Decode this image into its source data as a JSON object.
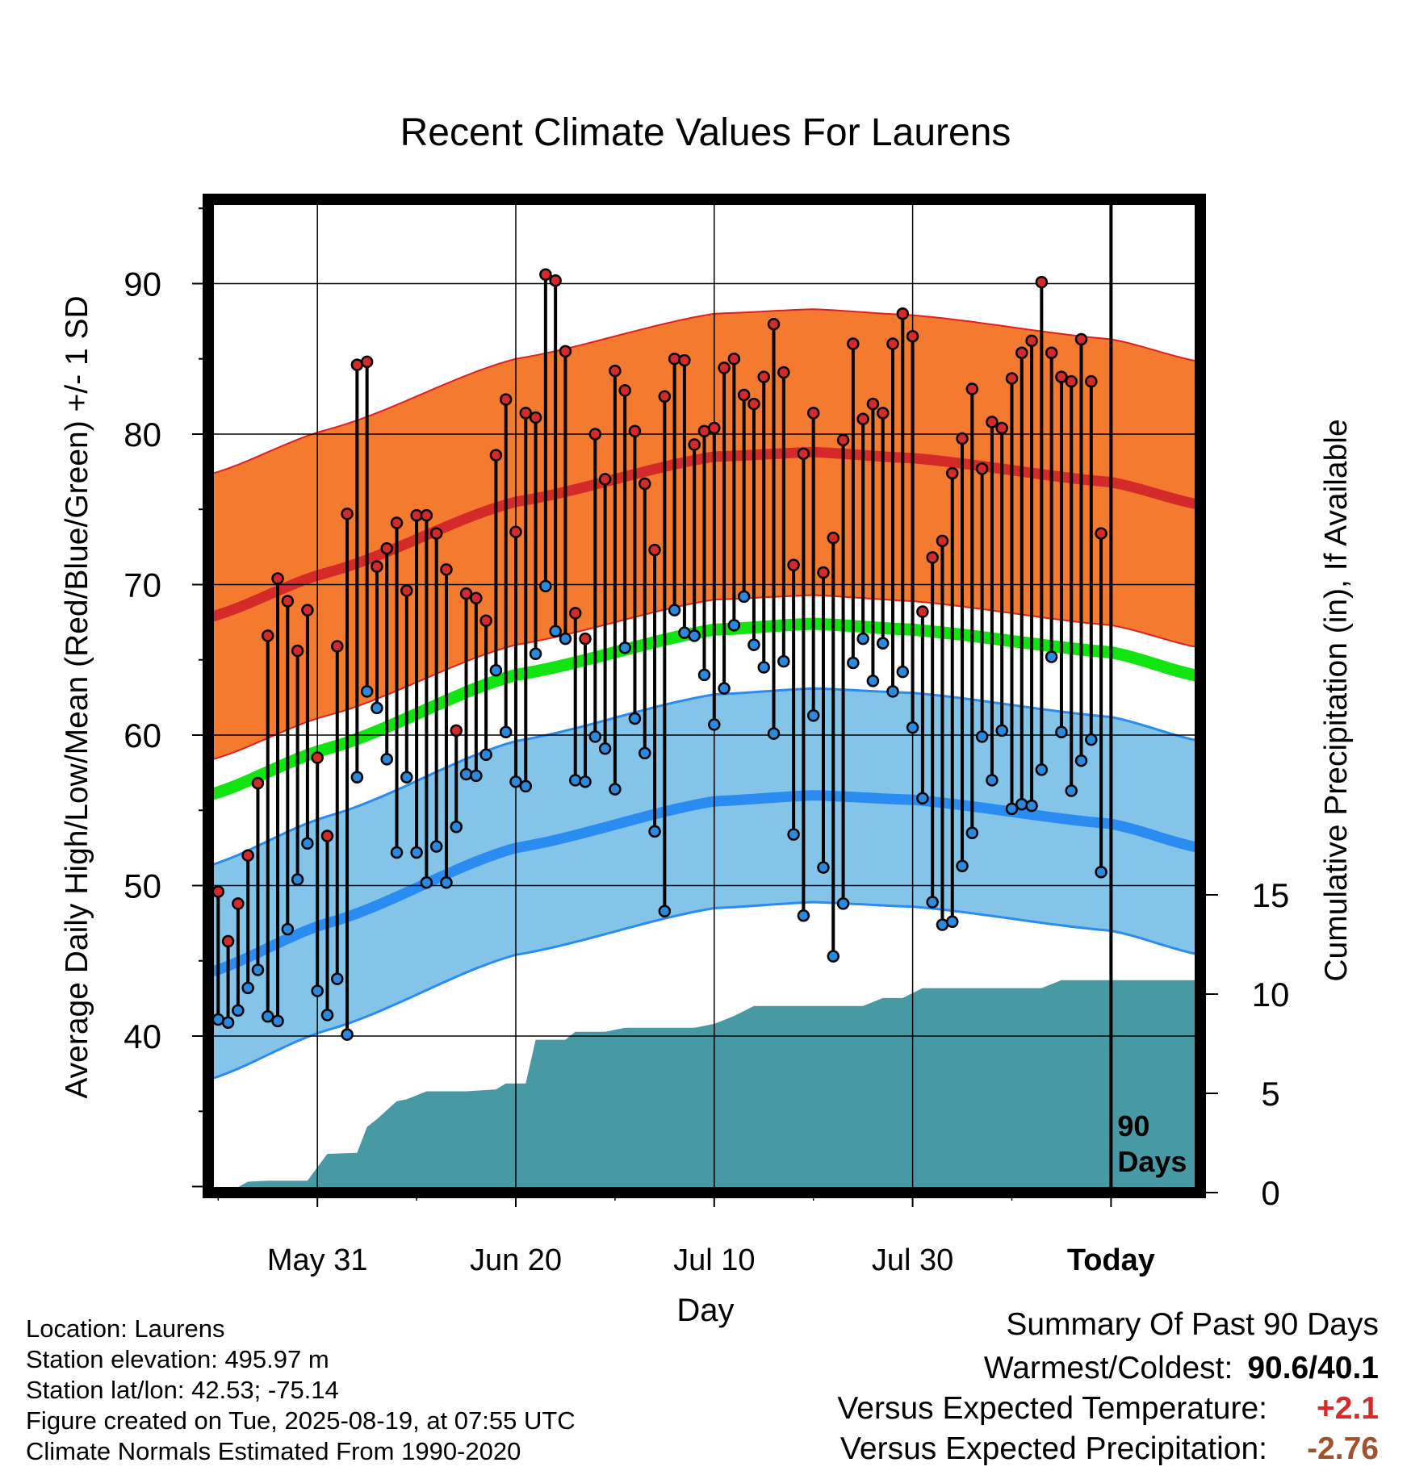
{
  "chart_data": {
    "type": "line",
    "title": "Recent Climate Values For Laurens",
    "xlabel": "Day",
    "ylabel_left": "Average Daily High/Low/Mean (Red/Blue/Green) +/- 1 SD",
    "ylabel_right": "Cumulative Precipitation (in), If Available",
    "x_range": [
      "2025-05-20",
      "2025-08-28"
    ],
    "y_left_range": [
      29.6,
      95.6
    ],
    "y_left_ticks": [
      40,
      50,
      60,
      70,
      80,
      90
    ],
    "y_right_range": [
      0,
      20
    ],
    "y_right_ticks": [
      0,
      5,
      10,
      15
    ],
    "x_ticks": [
      {
        "date": "2025-05-31",
        "label": "May 31"
      },
      {
        "date": "2025-06-20",
        "label": "Jun 20"
      },
      {
        "date": "2025-07-10",
        "label": "Jul 10"
      },
      {
        "date": "2025-07-30",
        "label": "Jul 30"
      },
      {
        "date": "2025-08-19",
        "label": "Today"
      }
    ],
    "today": "2025-08-19",
    "today_annotation": [
      "90",
      "Days"
    ],
    "grid": true,
    "first_date": "2025-05-21",
    "daily_high": [
      49.6,
      46.3,
      48.8,
      52.0,
      56.8,
      66.6,
      70.4,
      68.9,
      65.6,
      68.3,
      58.5,
      53.3,
      65.9,
      74.7,
      84.6,
      84.8,
      71.2,
      72.4,
      74.1,
      69.6,
      74.6,
      74.6,
      73.4,
      71.0,
      60.3,
      69.4,
      69.1,
      67.6,
      78.6,
      82.3,
      73.5,
      81.4,
      81.1,
      90.6,
      90.2,
      85.5,
      68.1,
      66.4,
      80.0,
      77.0,
      84.2,
      82.9,
      80.2,
      76.7,
      72.3,
      82.5,
      85.0,
      84.9,
      79.3,
      80.2,
      80.4,
      84.4,
      85.0,
      82.6,
      82.0,
      83.8,
      87.3,
      84.1,
      71.3,
      78.7,
      81.4,
      70.8,
      73.1,
      79.6,
      86.0,
      81.0,
      82.0,
      81.4,
      86.0,
      88.0,
      86.5,
      68.2,
      71.8,
      72.9,
      77.4,
      79.7,
      83.0,
      77.7,
      80.8,
      80.4,
      83.7,
      85.4,
      86.2,
      90.1,
      85.4,
      83.8,
      83.5,
      86.3,
      83.5,
      73.4
    ],
    "daily_low": [
      41.1,
      40.9,
      41.7,
      43.2,
      44.4,
      41.3,
      41.0,
      47.1,
      50.4,
      52.8,
      43.0,
      41.4,
      43.8,
      40.1,
      57.2,
      62.9,
      61.8,
      58.4,
      52.2,
      57.2,
      52.2,
      50.2,
      52.6,
      50.2,
      53.9,
      57.4,
      57.3,
      58.7,
      64.3,
      60.2,
      56.9,
      56.6,
      65.4,
      69.9,
      66.9,
      66.4,
      57.0,
      56.9,
      59.9,
      59.1,
      56.4,
      65.8,
      61.1,
      58.8,
      53.6,
      48.3,
      68.3,
      66.8,
      66.6,
      64.0,
      60.7,
      63.1,
      67.3,
      69.2,
      66.0,
      64.5,
      60.1,
      64.9,
      53.4,
      48.0,
      61.3,
      51.2,
      45.3,
      48.8,
      64.8,
      66.4,
      63.6,
      66.1,
      62.9,
      64.2,
      60.5,
      55.8,
      48.9,
      47.4,
      47.6,
      51.3,
      53.5,
      59.9,
      57.0,
      60.3,
      55.1,
      55.4,
      55.3,
      57.7,
      65.2,
      60.2,
      56.3,
      58.3,
      59.7,
      50.9
    ],
    "normal_high": [
      {
        "date": "2025-05-20",
        "value": 67.8
      },
      {
        "date": "2025-06-01",
        "value": 70.8
      },
      {
        "date": "2025-06-20",
        "value": 75.5
      },
      {
        "date": "2025-07-10",
        "value": 78.5
      },
      {
        "date": "2025-07-20",
        "value": 78.8
      },
      {
        "date": "2025-07-30",
        "value": 78.4
      },
      {
        "date": "2025-08-19",
        "value": 76.8
      },
      {
        "date": "2025-08-28",
        "value": 75.3
      }
    ],
    "normal_high_sd": 9.5,
    "normal_low": [
      {
        "date": "2025-05-20",
        "value": 44.2
      },
      {
        "date": "2025-06-01",
        "value": 47.5
      },
      {
        "date": "2025-06-20",
        "value": 52.5
      },
      {
        "date": "2025-07-10",
        "value": 55.6
      },
      {
        "date": "2025-07-20",
        "value": 56.0
      },
      {
        "date": "2025-07-30",
        "value": 55.7
      },
      {
        "date": "2025-08-19",
        "value": 54.1
      },
      {
        "date": "2025-08-28",
        "value": 52.5
      }
    ],
    "normal_low_sd": 7.1,
    "normal_mean": [
      {
        "date": "2025-05-20",
        "value": 56.0
      },
      {
        "date": "2025-06-01",
        "value": 59.1
      },
      {
        "date": "2025-06-20",
        "value": 64.0
      },
      {
        "date": "2025-07-10",
        "value": 67.0
      },
      {
        "date": "2025-07-20",
        "value": 67.4
      },
      {
        "date": "2025-07-30",
        "value": 67.0
      },
      {
        "date": "2025-08-19",
        "value": 65.5
      },
      {
        "date": "2025-08-28",
        "value": 63.9
      }
    ],
    "cumulative_precip": [
      {
        "date": "2025-05-21",
        "value": 0.0
      },
      {
        "date": "2025-05-22",
        "value": 0.0
      },
      {
        "date": "2025-05-24",
        "value": 0.55
      },
      {
        "date": "2025-05-26",
        "value": 0.6
      },
      {
        "date": "2025-05-30",
        "value": 0.6
      },
      {
        "date": "2025-06-01",
        "value": 1.95
      },
      {
        "date": "2025-06-04",
        "value": 2.0
      },
      {
        "date": "2025-06-05",
        "value": 3.3
      },
      {
        "date": "2025-06-06",
        "value": 3.7
      },
      {
        "date": "2025-06-08",
        "value": 4.6
      },
      {
        "date": "2025-06-09",
        "value": 4.7
      },
      {
        "date": "2025-06-11",
        "value": 5.1
      },
      {
        "date": "2025-06-15",
        "value": 5.1
      },
      {
        "date": "2025-06-18",
        "value": 5.2
      },
      {
        "date": "2025-06-19",
        "value": 5.5
      },
      {
        "date": "2025-06-21",
        "value": 5.5
      },
      {
        "date": "2025-06-22",
        "value": 7.7
      },
      {
        "date": "2025-06-25",
        "value": 7.7
      },
      {
        "date": "2025-06-26",
        "value": 8.1
      },
      {
        "date": "2025-06-29",
        "value": 8.1
      },
      {
        "date": "2025-07-01",
        "value": 8.3
      },
      {
        "date": "2025-07-08",
        "value": 8.3
      },
      {
        "date": "2025-07-10",
        "value": 8.5
      },
      {
        "date": "2025-07-12",
        "value": 8.9
      },
      {
        "date": "2025-07-14",
        "value": 9.4
      },
      {
        "date": "2025-07-25",
        "value": 9.4
      },
      {
        "date": "2025-07-27",
        "value": 9.8
      },
      {
        "date": "2025-07-29",
        "value": 9.8
      },
      {
        "date": "2025-07-31",
        "value": 10.3
      },
      {
        "date": "2025-08-12",
        "value": 10.3
      },
      {
        "date": "2025-08-14",
        "value": 10.7
      },
      {
        "date": "2025-08-28",
        "value": 10.7
      }
    ],
    "colors": {
      "high_band": "#f47a30",
      "high_line": "#d52a2a",
      "high_edge": "#e02020",
      "low_band": "#84c4e8",
      "low_line": "#2a8cf0",
      "low_edge": "#2a8cf0",
      "mean_line": "#11e411",
      "precip": "#4799a3",
      "high_marker": "#d42a2a",
      "low_marker": "#2a8ae0"
    }
  },
  "footer": {
    "location": "Location: Laurens",
    "elevation": "Station elevation: 495.97 m",
    "latlon": "Station lat/lon: 42.53; -75.14",
    "created": "Figure created on Tue, 2025-08-19, at 07:55 UTC",
    "normals": "Climate Normals Estimated From 1990-2020"
  },
  "summary": {
    "heading": "Summary Of Past 90 Days",
    "warmest_coldest_label": "Warmest/Coldest:",
    "warmest_coldest_value": "90.6/40.1",
    "temp_label": "Versus Expected Temperature:",
    "temp_value": "+2.1",
    "temp_color": "#d42a2a",
    "precip_label": "Versus Expected Precipitation:",
    "precip_value": "-2.76",
    "precip_color": "#a0522d"
  }
}
